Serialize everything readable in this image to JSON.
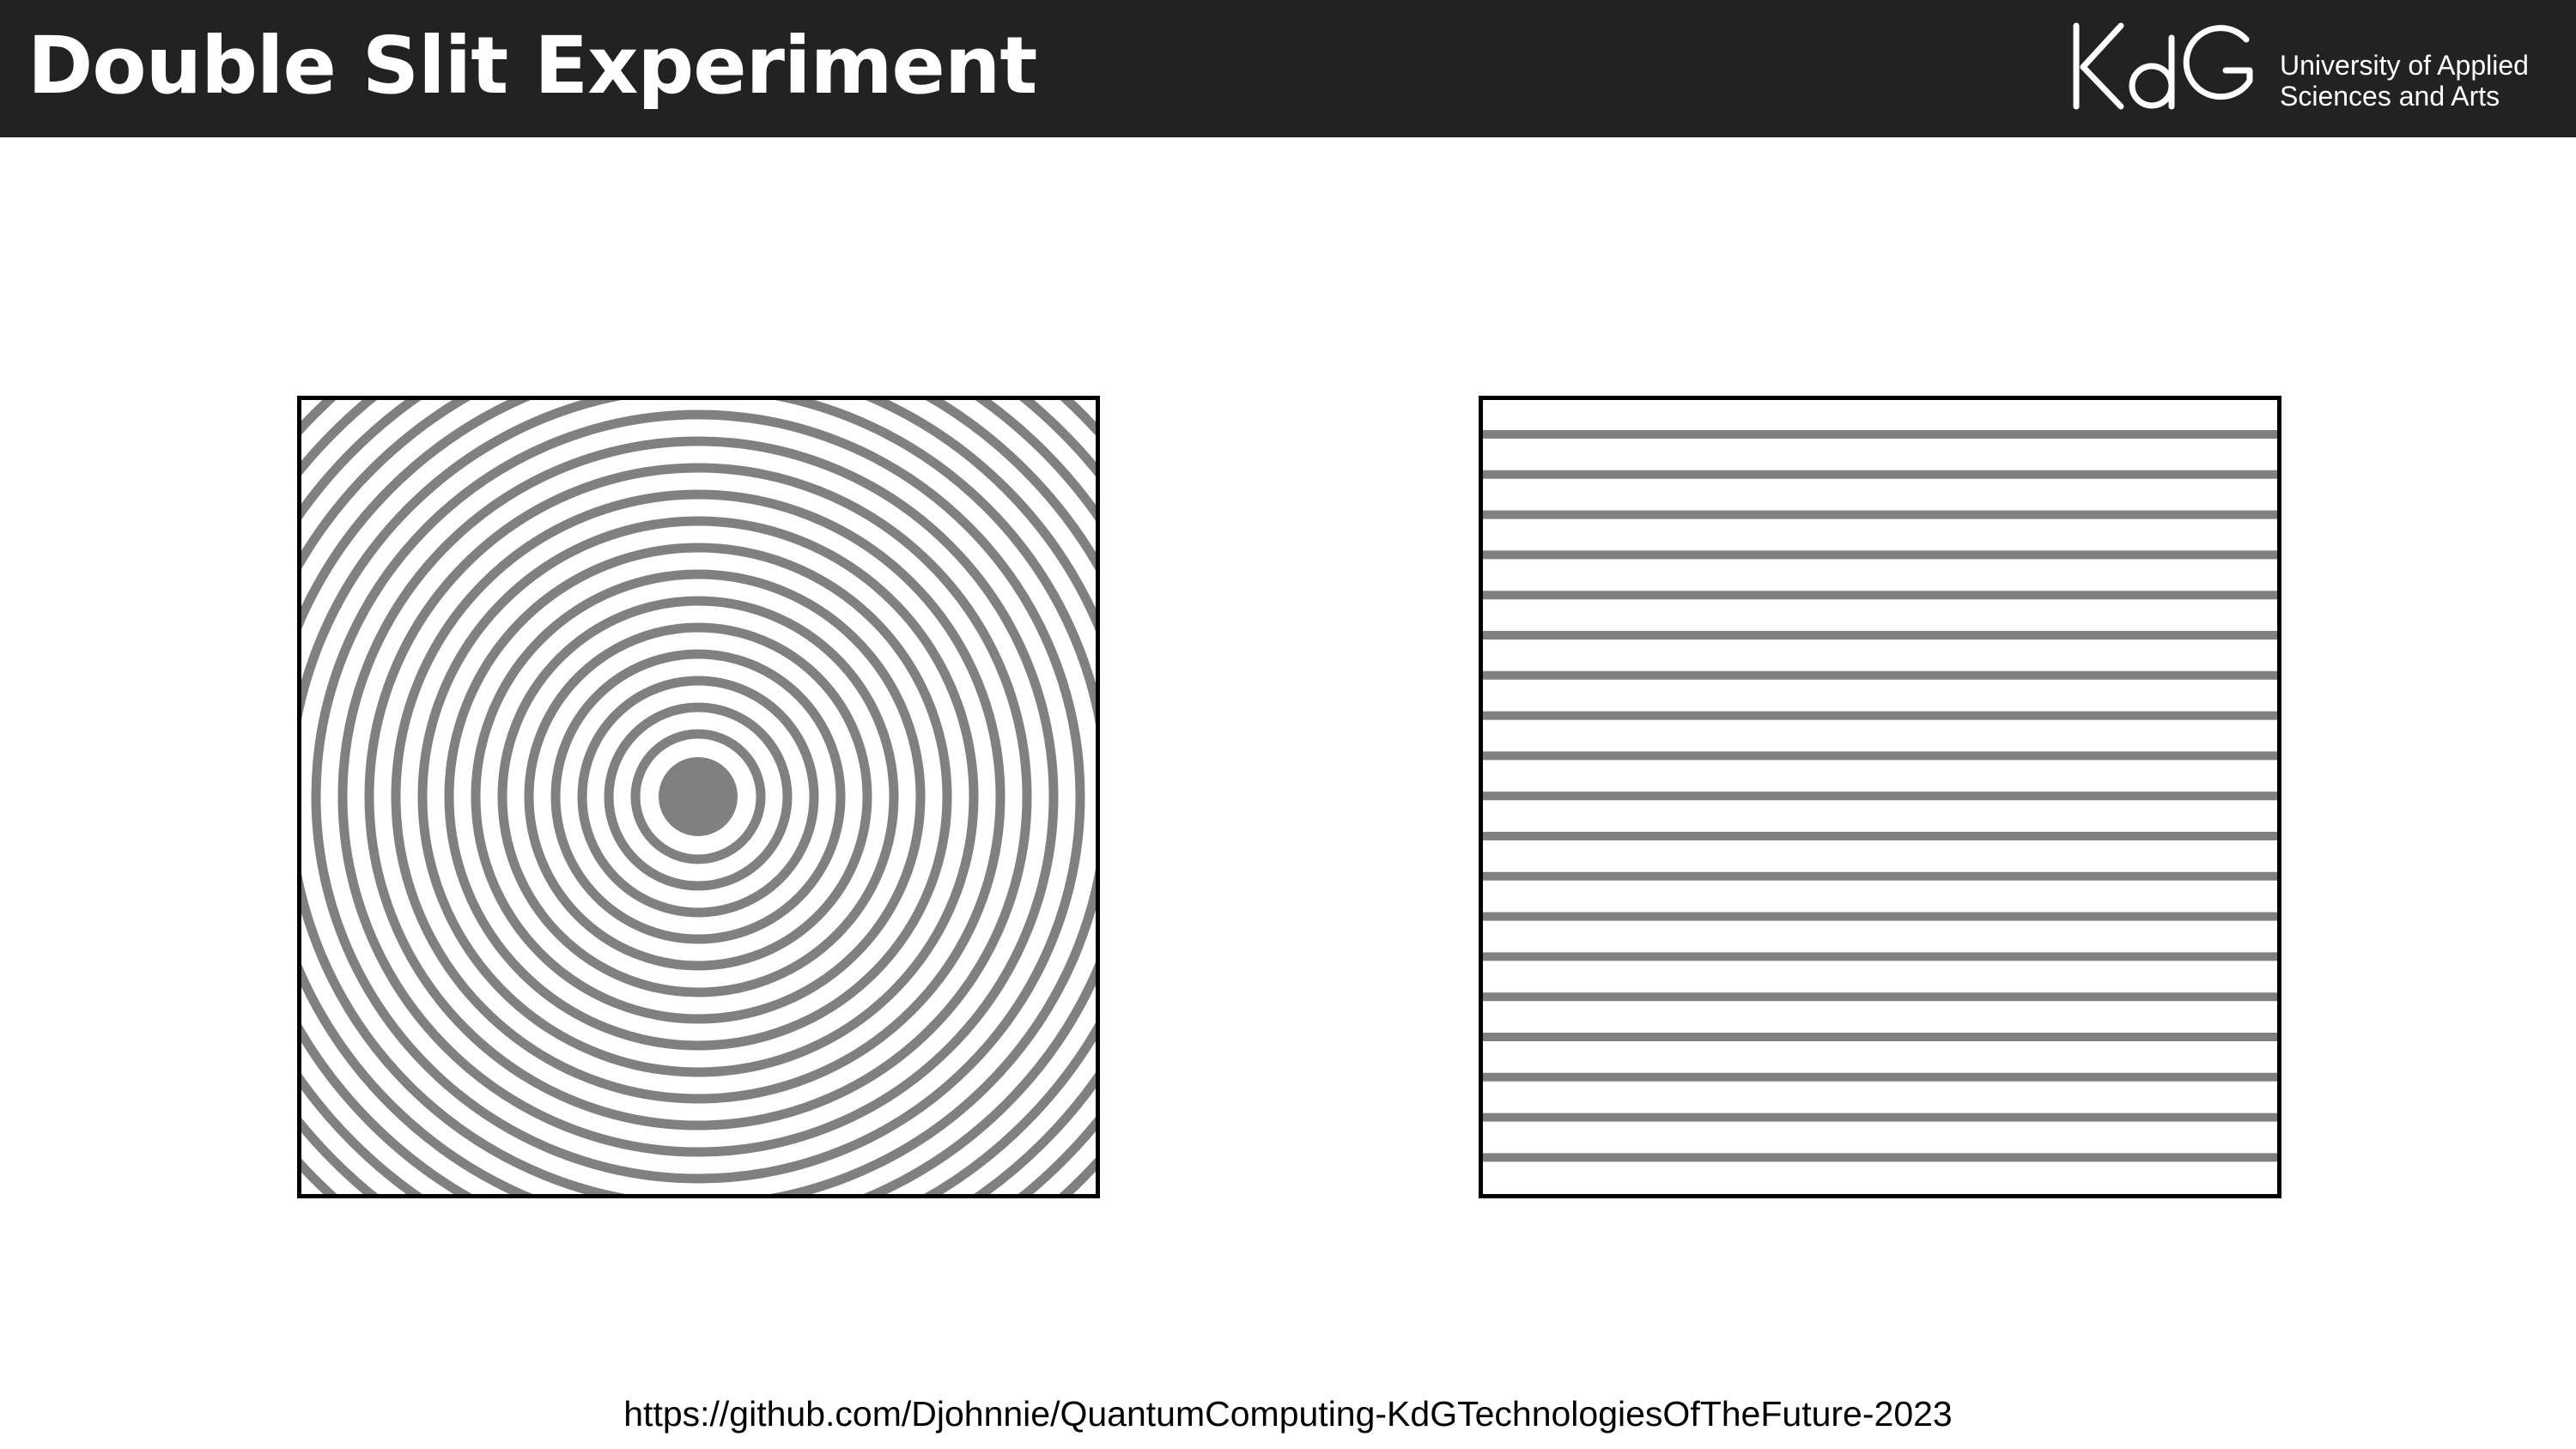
{
  "slide": {
    "title": "Double Slit Experiment",
    "source_url": "https://github.com/Djohnnie/QuantumComputing-KdGTechnologiesOfTheFuture-2023"
  },
  "logo": {
    "mark_text": "KdG",
    "line1": "University of Applied",
    "line2": "Sciences and Arts"
  },
  "colors": {
    "header_bg": "#222222",
    "wave_gray": "#808080",
    "frame": "#000000"
  },
  "figures": {
    "left": {
      "pattern": "concentric-circular-waves"
    },
    "right": {
      "pattern": "parallel-plane-waves"
    }
  }
}
